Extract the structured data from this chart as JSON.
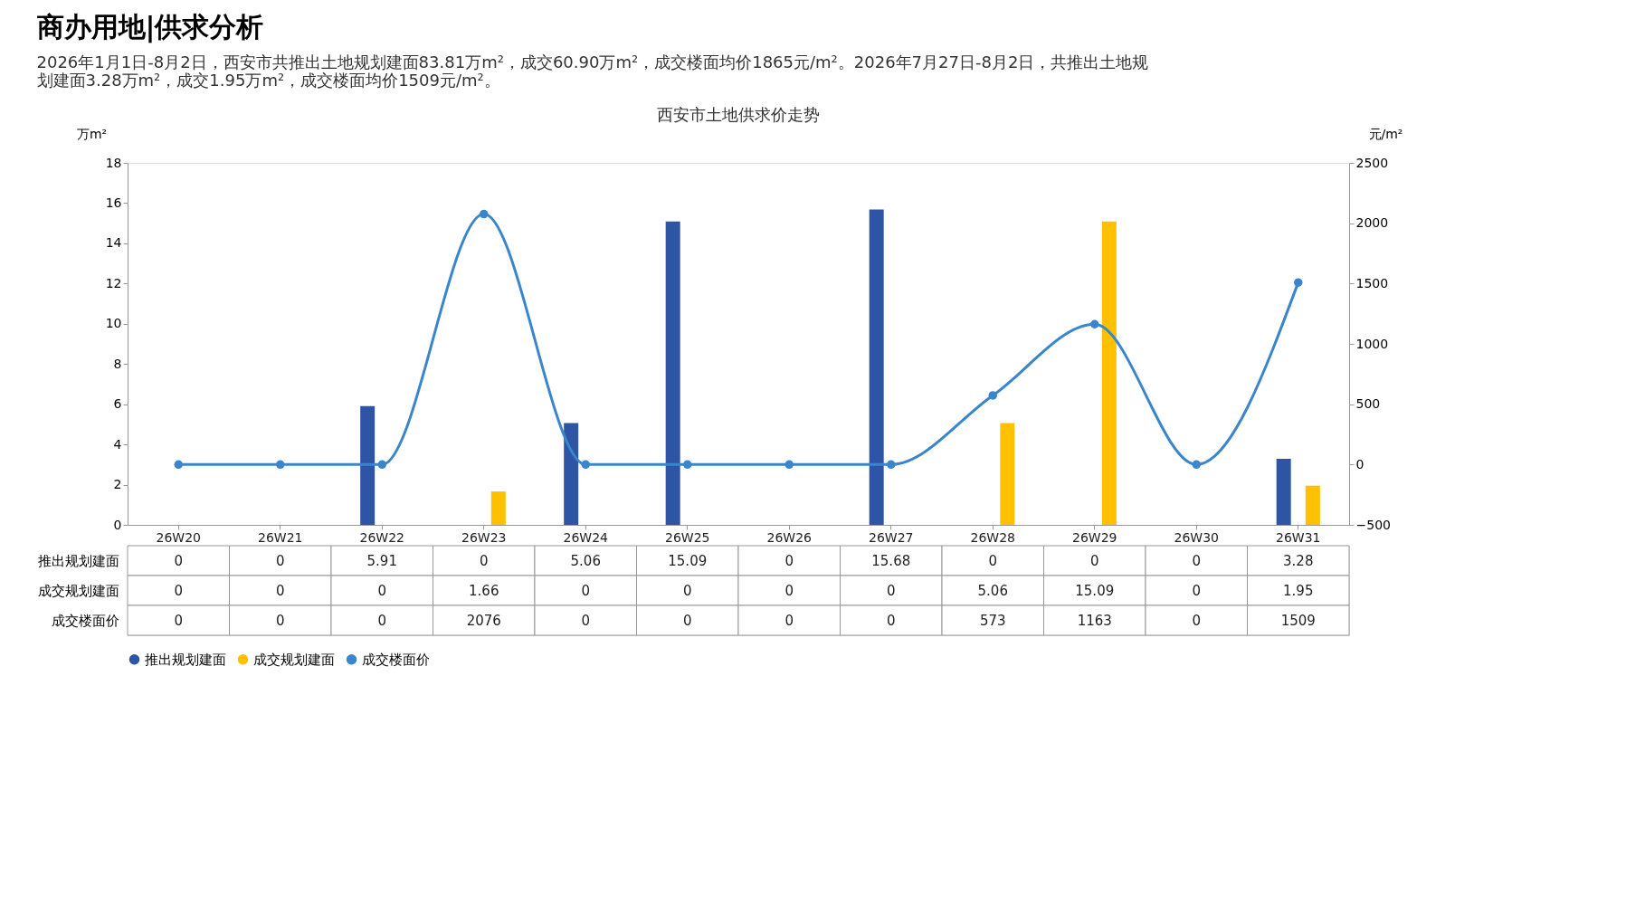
{
  "chart_data": {
    "type": "bar",
    "title": "商办用地|供求分析",
    "subtitle": "2026年1月1日-8月2日，西安市共推出土地规划建面83.81万m²，成交60.90万m²，成交楼面均价1865元/m²。2026年7月27日-8月2日，共推出土地规划建面3.28万m²，成交1.95万m²，成交楼面均价1509元/m²。",
    "annotations": [
      "西安市土地供求价走势"
    ],
    "ylabel": "万m²",
    "y2label": "元/m²",
    "categories": [
      "26W20",
      "26W21",
      "26W22",
      "26W23",
      "26W24",
      "26W25",
      "26W26",
      "26W27",
      "26W28",
      "26W29",
      "26W30",
      "26W31"
    ],
    "series": [
      {
        "name": "推出规划建面",
        "color": "#2e54a6",
        "values": [
          0,
          0,
          5.91,
          0,
          5.06,
          15.09,
          0,
          15.68,
          0,
          0,
          0,
          3.28
        ]
      },
      {
        "name": "成交规划建面",
        "color": "#ffc000",
        "values": [
          0,
          0,
          0,
          1.66,
          0,
          0,
          0,
          0,
          5.06,
          15.09,
          0,
          1.95
        ]
      },
      {
        "name": "成交楼面价",
        "type": "line",
        "axis": "y2",
        "color": "#3a86cc",
        "marker": "circle",
        "values": [
          0,
          0,
          0,
          2076,
          0,
          0,
          0,
          0,
          573,
          1163,
          0,
          1509
        ]
      }
    ],
    "ylim": [
      0,
      18
    ],
    "yticks": [
      0,
      2,
      4,
      6,
      8,
      10,
      12,
      14,
      16,
      18
    ],
    "y2lim": [
      -500,
      2500
    ],
    "y2ticks": [
      -500,
      0,
      500,
      1000,
      1500,
      2000,
      2500
    ],
    "data_labels": true,
    "grid": false,
    "legend": "bottom"
  }
}
